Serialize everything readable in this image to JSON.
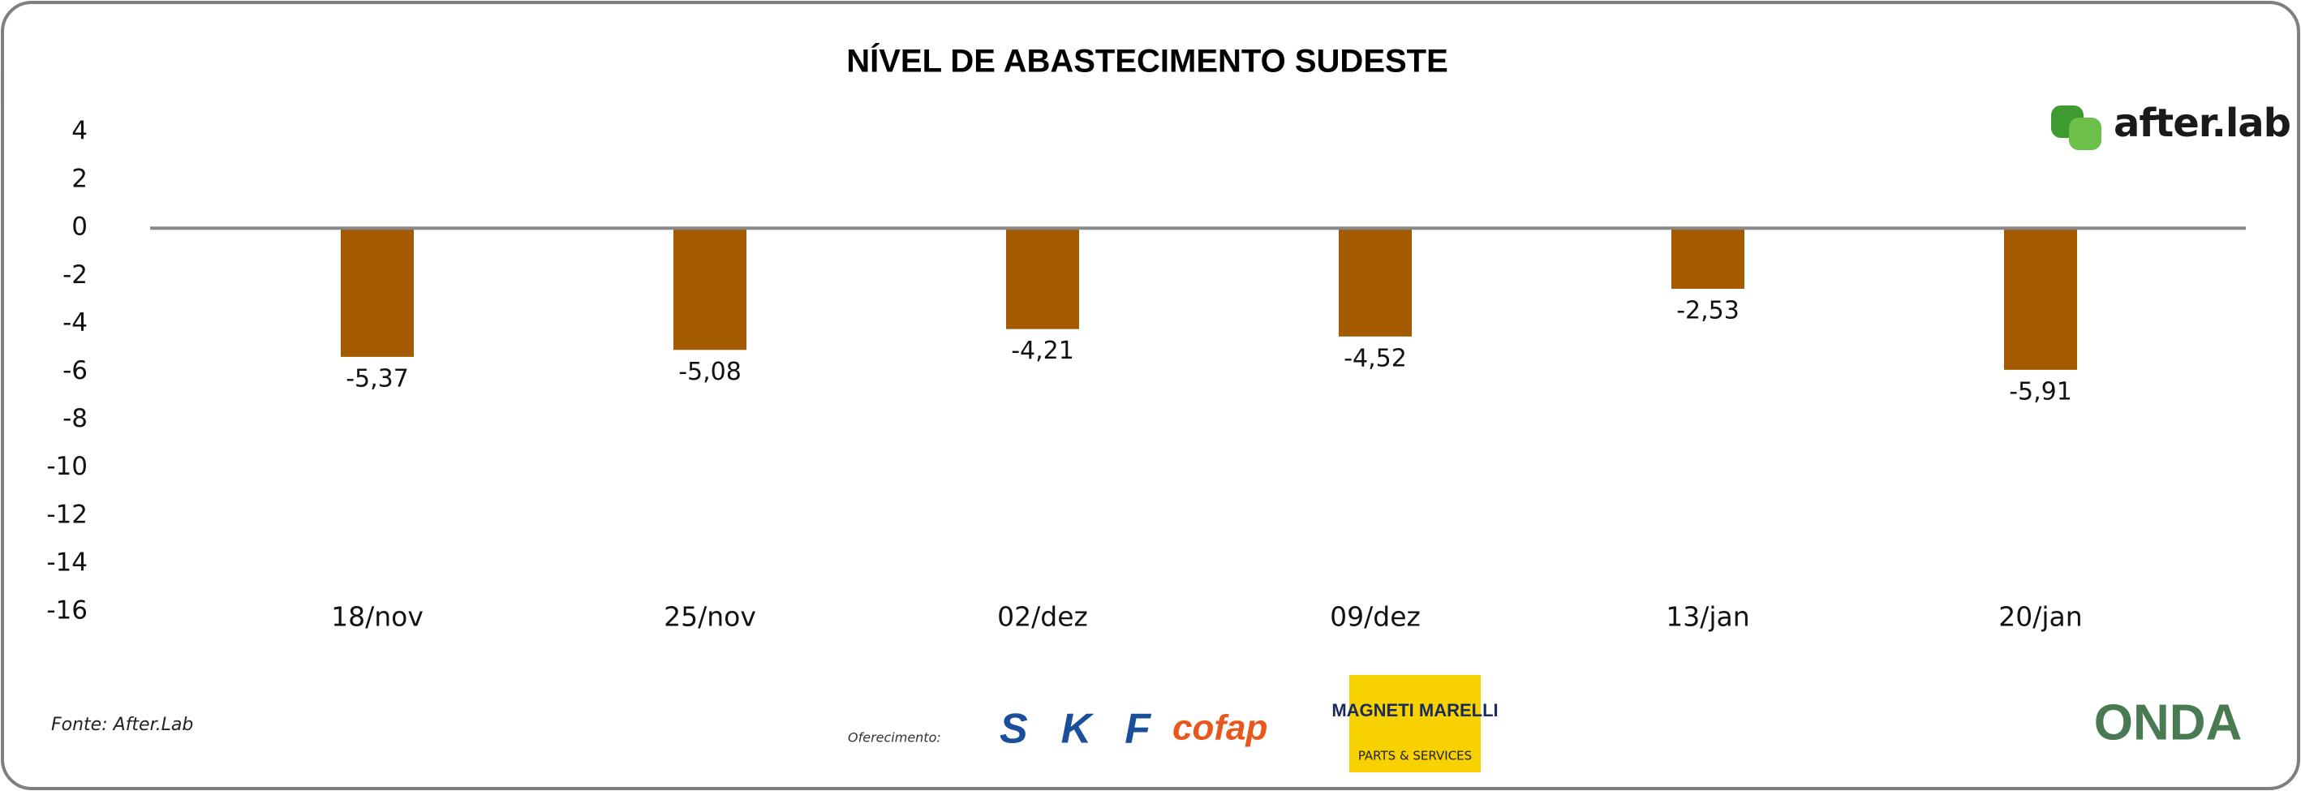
{
  "chart_data": {
    "type": "bar",
    "title": "NÍVEL DE ABASTECIMENTO SUDESTE",
    "categories": [
      "18/nov",
      "25/nov",
      "02/dez",
      "09/dez",
      "13/jan",
      "20/jan"
    ],
    "values": [
      -5.37,
      -5.08,
      -4.21,
      -4.52,
      -2.53,
      -5.91
    ],
    "value_labels": [
      "-5,37",
      "-5,08",
      "-4,21",
      "-4,52",
      "-2,53",
      "-5,91"
    ],
    "color": "#a35a00",
    "ylim": [
      -16,
      4
    ],
    "yticks": [
      4,
      2,
      0,
      -2,
      -4,
      -6,
      -8,
      -10,
      -12,
      -14,
      -16
    ],
    "grid": false
  },
  "footer": {
    "source": "Fonte: After.Lab",
    "sponsor_label": "Oferecimento:",
    "brand": "after.lab",
    "skf": "SKF",
    "cofap": "cofap",
    "magneti": "MAGNETI MARELLI",
    "magneti_sub": "PARTS & SERVICES",
    "onda": "ONDA"
  }
}
